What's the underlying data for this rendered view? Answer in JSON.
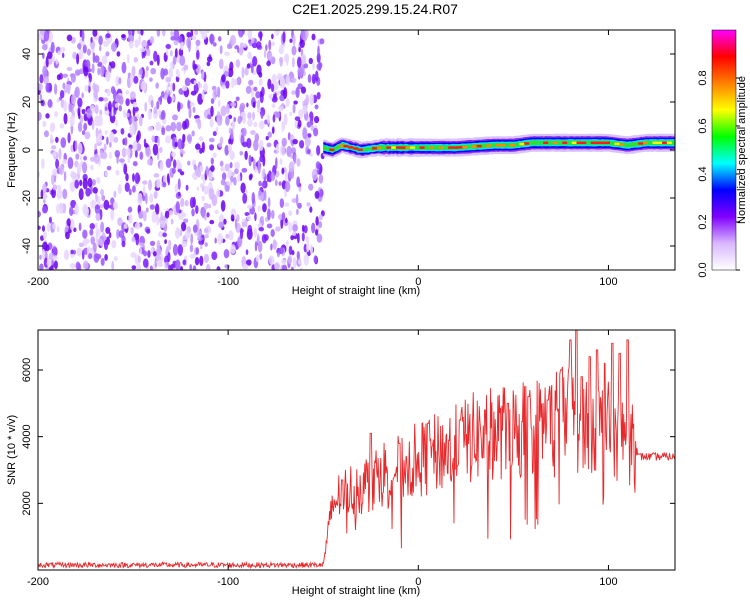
{
  "title": "C2E1.2025.299.15.24.R07",
  "chart_data": [
    {
      "type": "heatmap",
      "xlabel": "Height of straight line (km)",
      "ylabel": "Frequency (Hz)",
      "xlim": [
        -200,
        135
      ],
      "ylim": [
        -50,
        50
      ],
      "xticks": [
        -200,
        -100,
        0,
        100
      ],
      "xtick_labels": [
        "-200",
        "-100",
        "0",
        "100"
      ],
      "yticks": [
        -40,
        -20,
        0,
        20,
        40
      ],
      "ytick_labels": [
        "-40",
        "-20",
        "0",
        "20",
        "40"
      ],
      "noise_region_x": [
        -200,
        -50
      ],
      "signal_line": {
        "x": [
          -50,
          -45,
          -40,
          -30,
          -20,
          -10,
          0,
          20,
          40,
          50,
          60,
          80,
          100,
          110,
          120,
          135
        ],
        "frequency": [
          1,
          0,
          2,
          0,
          1,
          1,
          1,
          1,
          2,
          2,
          3,
          3,
          3,
          2,
          3,
          3
        ]
      },
      "colorbar": {
        "label": "Normalized spectral amplitude",
        "range": [
          0.0,
          1.0
        ],
        "ticks": [
          0.0,
          0.2,
          0.4,
          0.6,
          0.8
        ],
        "tick_labels": [
          "0.0",
          "0.2",
          "0.4",
          "0.6",
          "0.8"
        ],
        "colors": [
          "#ffffff",
          "#d9b8ff",
          "#8000ff",
          "#0000ff",
          "#00ffff",
          "#00ff00",
          "#ffff00",
          "#ff8000",
          "#ff0000",
          "#ff00ff"
        ]
      }
    },
    {
      "type": "line",
      "xlabel": "Height of straight line (km)",
      "ylabel": "SNR (10 * v/v)",
      "xlim": [
        -200,
        135
      ],
      "ylim": [
        0,
        7200
      ],
      "xticks": [
        -200,
        -100,
        0,
        100
      ],
      "xtick_labels": [
        "-200",
        "-100",
        "0",
        "100"
      ],
      "yticks": [
        2000,
        4000,
        6000
      ],
      "ytick_labels": [
        "2000",
        "4000",
        "6000"
      ],
      "line_color": "#e8282a",
      "series": [
        {
          "name": "SNR",
          "envelope_x": [
            -200,
            -50,
            -45,
            -40,
            -30,
            -20,
            -10,
            0,
            10,
            20,
            30,
            40,
            50,
            60,
            70,
            75,
            80,
            85,
            90,
            95,
            100,
            105,
            110,
            115,
            135
          ],
          "envelope_y": [
            150,
            150,
            2000,
            2300,
            2500,
            2900,
            3100,
            3300,
            3500,
            3700,
            4000,
            4100,
            4200,
            4300,
            4400,
            4600,
            4600,
            4400,
            4500,
            4300,
            4200,
            4100,
            4000,
            3400,
            3400
          ],
          "peaks_x": [
            -40,
            -25,
            -10,
            5,
            22,
            35,
            47,
            58,
            68,
            75,
            80,
            83,
            86,
            90,
            94,
            98,
            102,
            106,
            110
          ],
          "peaks_y": [
            2700,
            4100,
            3800,
            4400,
            4500,
            4800,
            5000,
            5200,
            5100,
            6000,
            6900,
            7200,
            5800,
            6400,
            6600,
            6200,
            6800,
            6500,
            6900
          ]
        }
      ]
    }
  ]
}
